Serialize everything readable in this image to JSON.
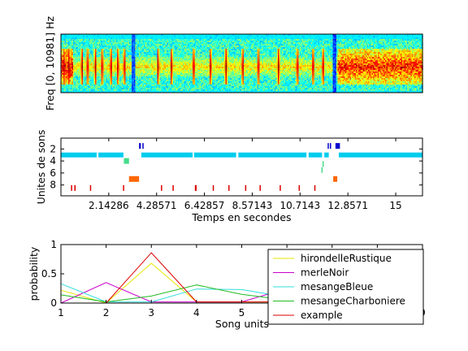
{
  "chart_data": [
    {
      "type": "heatmap",
      "kind": "spectrogram",
      "ylabel": "Freq [0, 10981] Hz",
      "xlim": [
        0,
        16.2
      ],
      "yticks": [],
      "xticks": [],
      "colormap": "jet",
      "background_level": 0.42,
      "band": {
        "center_fraction_from_bottom": 0.44,
        "level": 0.65
      },
      "quiet_columns": [
        {
          "t": 3.25,
          "width": 0.18,
          "level": 0.22
        },
        {
          "t": 12.25,
          "width": 0.14,
          "level": 0.2
        }
      ],
      "loud_regions": [
        {
          "t0": 0.0,
          "t1": 0.55,
          "level": 0.88
        },
        {
          "t0": 12.4,
          "t1": 16.2,
          "level": 0.85
        }
      ],
      "bursts_t": [
        0.15,
        0.35,
        0.95,
        1.2,
        1.55,
        1.85,
        2.25,
        2.55,
        2.85,
        4.35,
        4.95,
        5.95,
        6.7,
        7.4,
        8.15,
        8.85,
        9.75,
        10.6,
        11.3,
        11.75
      ]
    },
    {
      "type": "scatter",
      "kind": "event-raster",
      "xlabel": "Temps en secondes",
      "ylabel": "Unites de sons",
      "xlim": [
        0,
        16.2
      ],
      "ylim": [
        9.8,
        0.2
      ],
      "xticks": [
        2.14286,
        4.28571,
        6.42857,
        8.57143,
        10.7143,
        12.8571,
        15
      ],
      "xtick_labels": [
        "2.14286",
        "4.28571",
        "6.42857",
        "8.57143",
        "10.7143",
        "12.8571",
        "15"
      ],
      "yticks": [
        2,
        4,
        6,
        8
      ],
      "bars": [
        {
          "unit": 1.5,
          "color": "#0000cc",
          "t0": 3.5,
          "t1": 3.58
        },
        {
          "unit": 1.5,
          "color": "#0000cc",
          "t0": 3.65,
          "t1": 3.7
        },
        {
          "unit": 1.5,
          "color": "#0000cc",
          "t0": 11.95,
          "t1": 12.0
        },
        {
          "unit": 1.5,
          "color": "#0000cc",
          "t0": 12.05,
          "t1": 12.1
        },
        {
          "unit": 1.5,
          "color": "#0000cc",
          "t0": 12.3,
          "t1": 12.5
        },
        {
          "unit": 3.0,
          "color": "#00ccee",
          "t0": 0.0,
          "t1": 1.6
        },
        {
          "unit": 3.0,
          "color": "#00ccee",
          "t0": 1.68,
          "t1": 2.8
        },
        {
          "unit": 3.0,
          "color": "#00ccee",
          "t0": 3.6,
          "t1": 5.9
        },
        {
          "unit": 3.0,
          "color": "#00ccee",
          "t0": 5.97,
          "t1": 7.85
        },
        {
          "unit": 3.0,
          "color": "#00ccee",
          "t0": 7.95,
          "t1": 11.0
        },
        {
          "unit": 3.0,
          "color": "#00ccee",
          "t0": 11.1,
          "t1": 11.7
        },
        {
          "unit": 3.0,
          "color": "#00ccee",
          "t0": 11.8,
          "t1": 12.0
        },
        {
          "unit": 3.0,
          "color": "#00ccee",
          "t0": 12.45,
          "t1": 16.2
        },
        {
          "unit": 4.0,
          "color": "#44dd88",
          "t0": 2.82,
          "t1": 3.05
        },
        {
          "unit": 4.5,
          "color": "#44dd88",
          "t0": 11.72,
          "t1": 11.76
        },
        {
          "unit": 5.5,
          "color": "#44dd88",
          "t0": 11.67,
          "t1": 11.7
        },
        {
          "unit": 7.0,
          "color": "#ff6600",
          "t0": 3.05,
          "t1": 3.5
        },
        {
          "unit": 7.0,
          "color": "#ff6600",
          "t0": 12.2,
          "t1": 12.38
        },
        {
          "unit": 8.5,
          "color": "#dd0000",
          "t0": 0.45,
          "t1": 0.5
        },
        {
          "unit": 8.5,
          "color": "#dd0000",
          "t0": 0.6,
          "t1": 0.66
        },
        {
          "unit": 8.5,
          "color": "#dd0000",
          "t0": 1.3,
          "t1": 1.34
        },
        {
          "unit": 8.5,
          "color": "#dd0000",
          "t0": 2.78,
          "t1": 2.81
        },
        {
          "unit": 8.5,
          "color": "#dd0000",
          "t0": 4.48,
          "t1": 4.52
        },
        {
          "unit": 8.5,
          "color": "#dd0000",
          "t0": 5.0,
          "t1": 5.04
        },
        {
          "unit": 8.5,
          "color": "#dd0000",
          "t0": 6.0,
          "t1": 6.08
        },
        {
          "unit": 8.5,
          "color": "#dd0000",
          "t0": 6.8,
          "t1": 6.84
        },
        {
          "unit": 8.5,
          "color": "#dd0000",
          "t0": 7.5,
          "t1": 7.54
        },
        {
          "unit": 8.5,
          "color": "#dd0000",
          "t0": 8.25,
          "t1": 8.3
        },
        {
          "unit": 8.5,
          "color": "#dd0000",
          "t0": 8.9,
          "t1": 8.93
        },
        {
          "unit": 8.5,
          "color": "#dd0000",
          "t0": 9.8,
          "t1": 9.84
        },
        {
          "unit": 8.5,
          "color": "#dd0000",
          "t0": 10.65,
          "t1": 10.69
        },
        {
          "unit": 8.5,
          "color": "#dd0000",
          "t0": 11.35,
          "t1": 11.39
        }
      ]
    },
    {
      "type": "line",
      "xlabel": "Song units",
      "ylabel": "probability",
      "xlim": [
        1,
        9
      ],
      "ylim": [
        0,
        1
      ],
      "xticks": [
        1,
        2,
        3,
        4,
        5,
        6,
        7,
        8,
        9
      ],
      "yticks": [
        0,
        0.5,
        1
      ],
      "ytick_labels": [
        "0",
        "0.5",
        "1"
      ],
      "legend_position": "right",
      "x": [
        1,
        2,
        3,
        4,
        5,
        6,
        7,
        8,
        9
      ],
      "series": [
        {
          "name": "hirondelleRustique",
          "color": "#e6e600",
          "values": [
            0.22,
            0.0,
            0.68,
            0.02,
            0.02,
            0.02,
            0.02,
            0.02,
            0.02
          ]
        },
        {
          "name": "merleNoir",
          "color": "#cc00cc",
          "values": [
            0.0,
            0.35,
            0.02,
            0.02,
            0.02,
            0.25,
            0.1,
            0.1,
            0.1
          ]
        },
        {
          "name": "mesangeBleue",
          "color": "#33dddd",
          "values": [
            0.33,
            0.02,
            0.02,
            0.24,
            0.23,
            0.1,
            0.1,
            0.1,
            0.1
          ]
        },
        {
          "name": "mesangeCharboniere",
          "color": "#22bb22",
          "values": [
            0.14,
            0.02,
            0.12,
            0.31,
            0.15,
            0.05,
            0.05,
            0.05,
            0.18
          ]
        },
        {
          "name": "example",
          "color": "#dd0000",
          "values": [
            0.0,
            0.0,
            0.86,
            0.02,
            0.02,
            0.02,
            0.02,
            0.02,
            0.02
          ]
        }
      ]
    }
  ]
}
